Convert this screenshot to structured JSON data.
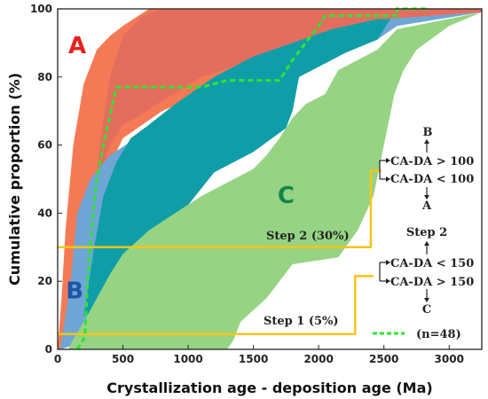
{
  "chart_data": {
    "type": "area",
    "title": "",
    "xlabel": "Crystallization age - deposition age (Ma)",
    "ylabel": "Cumulative proportion (%)",
    "xlim": [
      0,
      3250
    ],
    "ylim": [
      0,
      100
    ],
    "x_ticks": [
      "0",
      "500",
      "1000",
      "1500",
      "2000",
      "2500",
      "3000"
    ],
    "y_ticks": [
      "0",
      "20",
      "40",
      "60",
      "80",
      "100"
    ],
    "x_tick_values": [
      0,
      500,
      1000,
      1500,
      2000,
      2500,
      3000
    ],
    "y_tick_values": [
      0,
      20,
      40,
      60,
      80,
      100
    ],
    "regions": [
      {
        "label": "A",
        "label_color": "#e8211c",
        "color": "#f47a55",
        "points": [
          [
            0,
            0
          ],
          [
            30,
            15
          ],
          [
            60,
            35
          ],
          [
            120,
            60
          ],
          [
            200,
            78
          ],
          [
            300,
            88
          ],
          [
            400,
            92
          ],
          [
            500,
            95
          ],
          [
            700,
            100
          ],
          [
            3250,
            100
          ],
          [
            3250,
            99
          ],
          [
            2500,
            97
          ],
          [
            1800,
            90
          ],
          [
            1400,
            80
          ],
          [
            800,
            70
          ],
          [
            500,
            62
          ],
          [
            350,
            50
          ],
          [
            250,
            35
          ],
          [
            180,
            20
          ],
          [
            130,
            10
          ],
          [
            80,
            3
          ],
          [
            40,
            0
          ]
        ]
      },
      {
        "label": "",
        "color": "#df6c60",
        "points": [
          [
            150,
            5
          ],
          [
            250,
            30
          ],
          [
            320,
            60
          ],
          [
            400,
            80
          ],
          [
            500,
            92
          ],
          [
            650,
            98
          ],
          [
            800,
            100
          ],
          [
            3250,
            100
          ],
          [
            3250,
            99
          ],
          [
            2550,
            97
          ],
          [
            2100,
            93
          ],
          [
            1800,
            90
          ],
          [
            1500,
            85
          ],
          [
            1100,
            80
          ],
          [
            800,
            73
          ],
          [
            600,
            68
          ],
          [
            500,
            66
          ],
          [
            400,
            60
          ],
          [
            300,
            47
          ]
        ]
      },
      {
        "label": "B",
        "label_color": "#1e56a8",
        "color": "#6ea6d6",
        "points": [
          [
            20,
            0
          ],
          [
            100,
            20
          ],
          [
            150,
            40
          ],
          [
            250,
            50
          ],
          [
            400,
            57
          ],
          [
            560,
            61
          ],
          [
            700,
            66
          ],
          [
            900,
            72
          ],
          [
            1200,
            80
          ],
          [
            1500,
            86
          ],
          [
            1800,
            90
          ],
          [
            2100,
            94
          ],
          [
            2500,
            97
          ],
          [
            3250,
            99
          ],
          [
            2600,
            95
          ],
          [
            2450,
            91
          ],
          [
            2200,
            87
          ],
          [
            1850,
            80
          ],
          [
            1750,
            65
          ],
          [
            1500,
            58
          ],
          [
            1200,
            52
          ],
          [
            900,
            45
          ],
          [
            700,
            38
          ],
          [
            500,
            30
          ],
          [
            400,
            20
          ],
          [
            300,
            10
          ],
          [
            250,
            5
          ],
          [
            200,
            3
          ],
          [
            100,
            1
          ]
        ]
      },
      {
        "label": "",
        "color": "#0f9ea8",
        "points": [
          [
            200,
            10
          ],
          [
            280,
            30
          ],
          [
            350,
            45
          ],
          [
            450,
            55
          ],
          [
            560,
            62
          ],
          [
            700,
            66
          ],
          [
            900,
            72
          ],
          [
            1200,
            80
          ],
          [
            1500,
            86
          ],
          [
            1800,
            90
          ],
          [
            2100,
            94
          ],
          [
            2450,
            97
          ],
          [
            2550,
            97
          ],
          [
            2450,
            91
          ],
          [
            2200,
            87
          ],
          [
            1850,
            80
          ],
          [
            1800,
            70
          ],
          [
            1750,
            65
          ],
          [
            1500,
            58
          ],
          [
            1200,
            52
          ],
          [
            950,
            40
          ],
          [
            700,
            30
          ],
          [
            500,
            20
          ],
          [
            400,
            14
          ],
          [
            300,
            11
          ],
          [
            220,
            10
          ]
        ]
      },
      {
        "label": "C",
        "label_color": "#12854a",
        "color": "#96d484",
        "points": [
          [
            1300,
            0
          ],
          [
            1350,
            3
          ],
          [
            1400,
            8
          ],
          [
            1600,
            15
          ],
          [
            1800,
            25
          ],
          [
            2150,
            27
          ],
          [
            2300,
            35
          ],
          [
            2420,
            45
          ],
          [
            2500,
            60
          ],
          [
            2580,
            75
          ],
          [
            2650,
            82
          ],
          [
            2750,
            88
          ],
          [
            3000,
            95
          ],
          [
            3250,
            99
          ],
          [
            2600,
            94
          ],
          [
            2450,
            88
          ],
          [
            2300,
            85
          ],
          [
            2150,
            82
          ],
          [
            2050,
            75
          ],
          [
            1900,
            72
          ],
          [
            1800,
            68
          ],
          [
            1700,
            62
          ],
          [
            1600,
            57
          ],
          [
            1500,
            53
          ],
          [
            1350,
            50
          ],
          [
            1100,
            45
          ],
          [
            900,
            40
          ],
          [
            700,
            35
          ],
          [
            500,
            28
          ],
          [
            400,
            22
          ],
          [
            300,
            15
          ],
          [
            200,
            8
          ],
          [
            120,
            3
          ],
          [
            80,
            0
          ]
        ]
      }
    ],
    "series": [
      {
        "name": "(n=48)",
        "style": "dashed",
        "color": "#2ee62e",
        "points": [
          [
            150,
            0
          ],
          [
            200,
            3
          ],
          [
            210,
            5
          ],
          [
            230,
            20
          ],
          [
            260,
            35
          ],
          [
            300,
            50
          ],
          [
            350,
            60
          ],
          [
            420,
            72
          ],
          [
            450,
            77
          ],
          [
            700,
            77
          ],
          [
            1100,
            77
          ],
          [
            1300,
            79
          ],
          [
            1700,
            79
          ],
          [
            1800,
            85
          ],
          [
            1900,
            90
          ],
          [
            2000,
            95
          ],
          [
            2050,
            98
          ],
          [
            2600,
            98
          ],
          [
            2600,
            100
          ],
          [
            2850,
            100
          ]
        ]
      }
    ],
    "steps": [
      {
        "name": "Step 1 (5%)",
        "color": "#f5c518",
        "points": [
          [
            0,
            4.5
          ],
          [
            2280,
            4.5
          ],
          [
            2280,
            21.5
          ],
          [
            2420,
            21.5
          ]
        ]
      },
      {
        "name": "Step 2 (30%)",
        "color": "#f5c518",
        "points": [
          [
            0,
            30
          ],
          [
            2400,
            30
          ],
          [
            2400,
            52.5
          ],
          [
            2480,
            52.5
          ]
        ]
      }
    ],
    "flow_text": {
      "top_b": "B",
      "ca_gt_100": "CA-DA > 100",
      "ca_lt_100": "CA-DA < 100",
      "mid_a": "A",
      "step2": "Step 2",
      "ca_lt_150": "CA-DA < 150",
      "ca_gt_150": "CA-DA > 150",
      "bottom_c": "C"
    },
    "legend": {
      "label": "(n=48)",
      "placement": "bottom-right"
    },
    "grid": false
  }
}
